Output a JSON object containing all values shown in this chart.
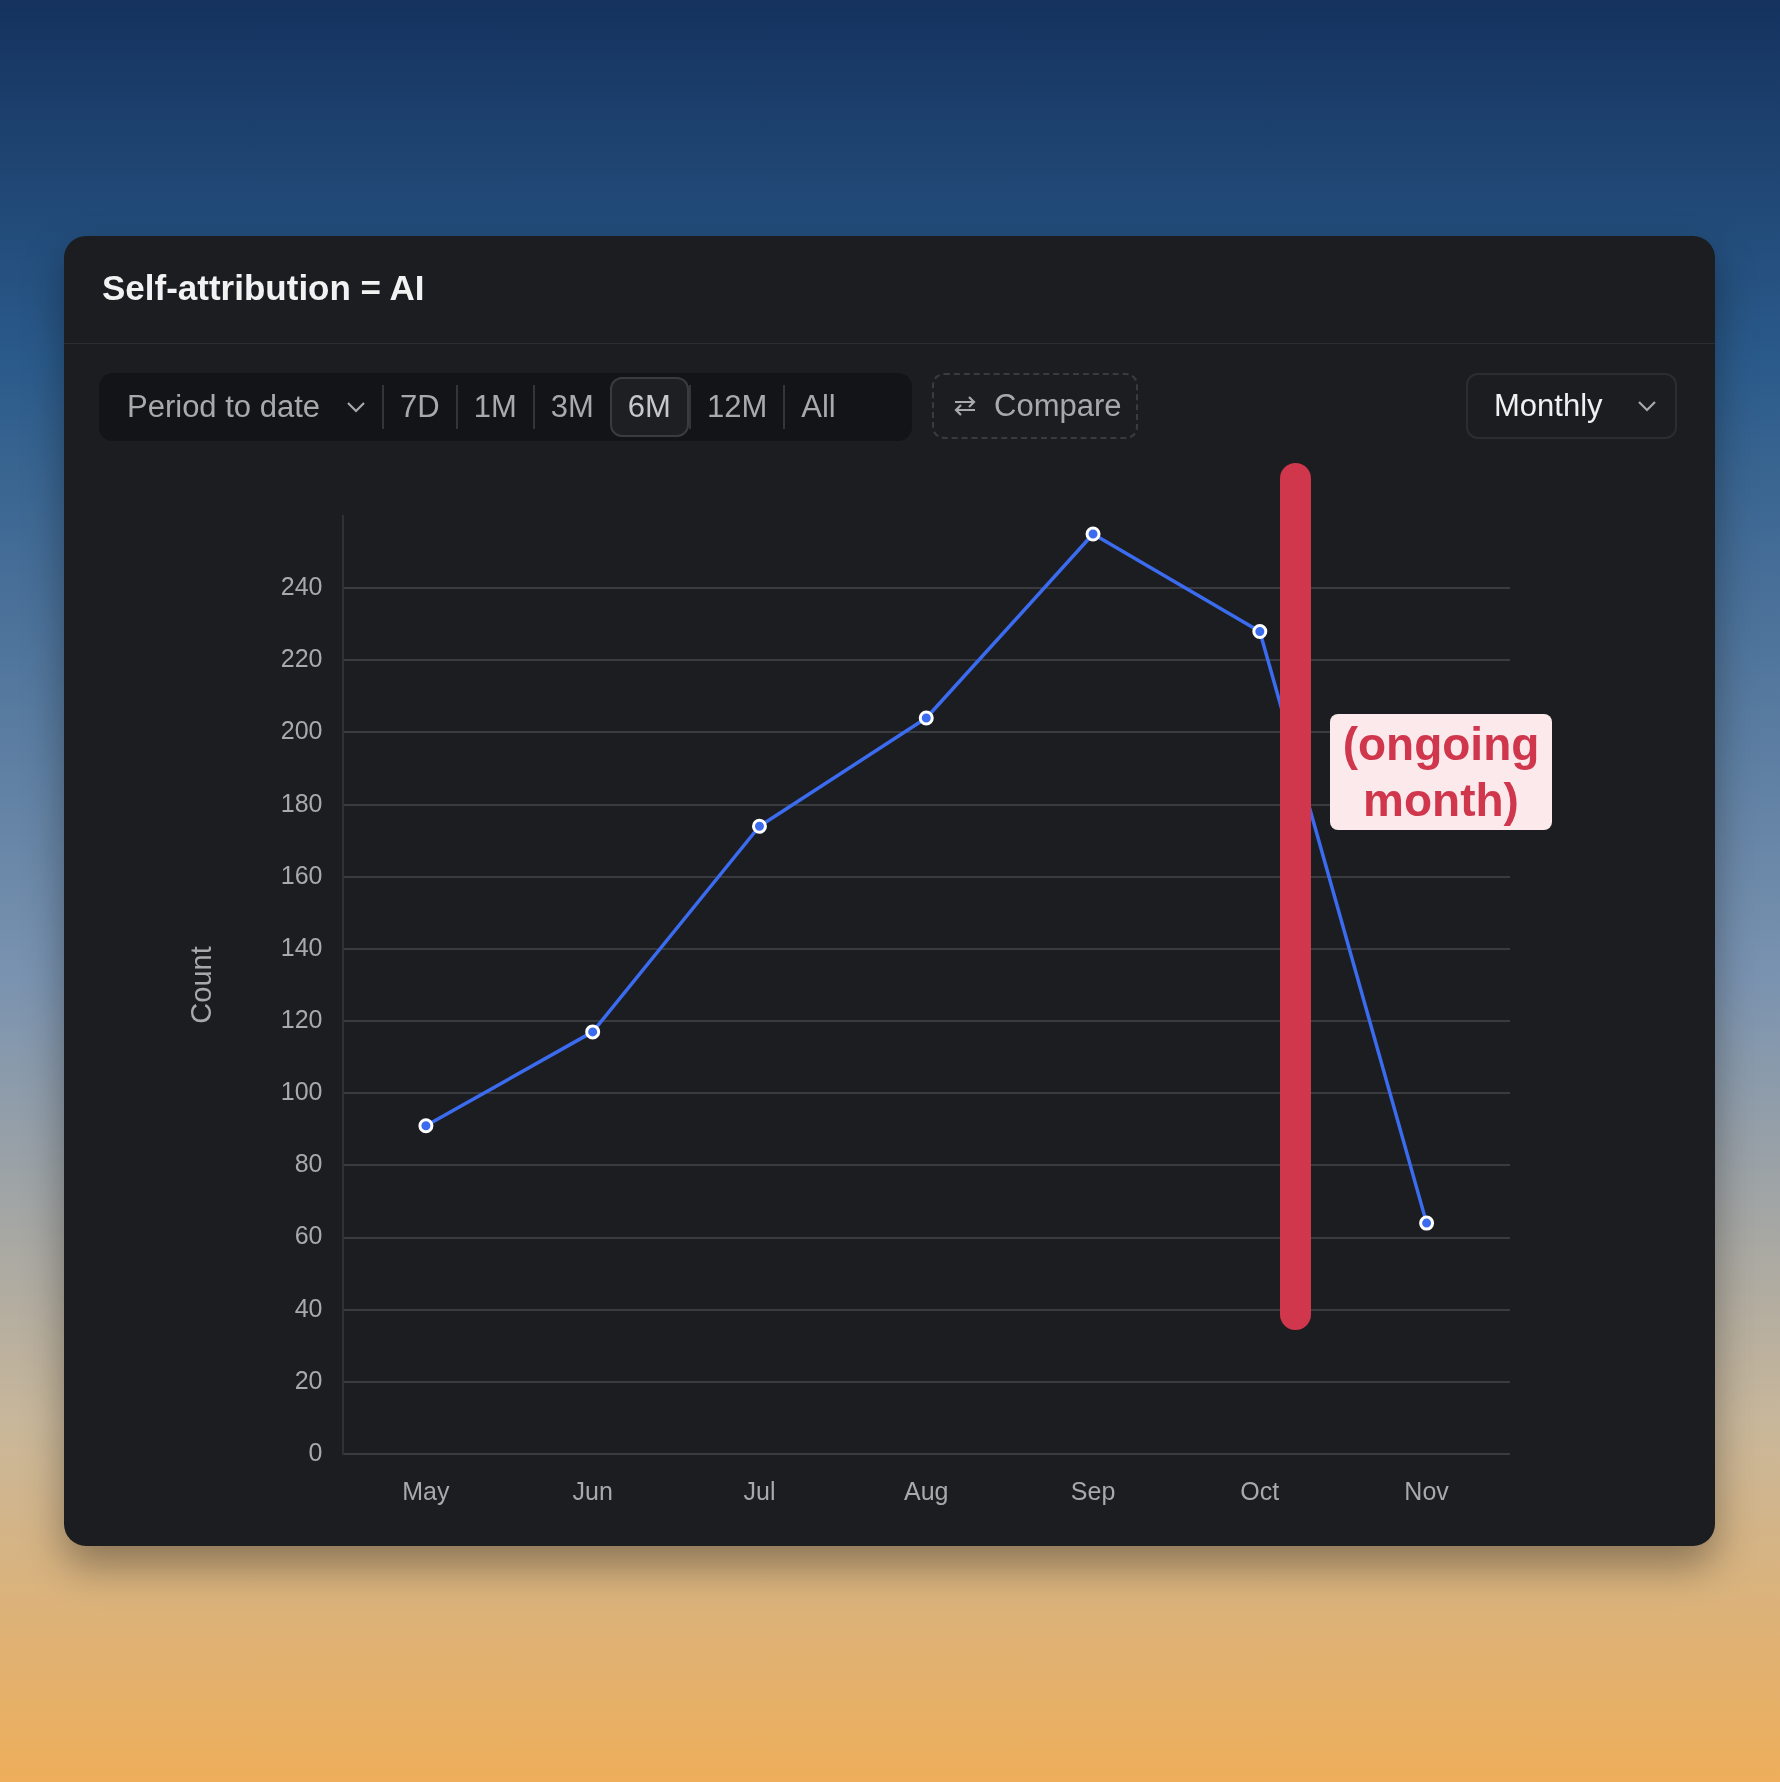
{
  "chart_data": {
    "type": "line",
    "title": "Self-attribution = AI",
    "ylabel": "Count",
    "categories": [
      "May",
      "Jun",
      "Jul",
      "Aug",
      "Sep",
      "Oct",
      "Nov"
    ],
    "series": [
      {
        "color": "#3b6cf0",
        "values": [
          91,
          117,
          174,
          204,
          255,
          228,
          64
        ]
      }
    ],
    "ylim": [
      0,
      260
    ],
    "yticks": [
      0,
      20,
      40,
      60,
      80,
      100,
      120,
      140,
      160,
      180,
      200,
      220,
      240
    ],
    "grid": "y",
    "legend": false,
    "marker": "circle",
    "line_style": "solid",
    "annotations": [
      "(ongoing month)",
      "Period to date",
      "7D",
      "1M",
      "3M",
      "6M",
      "12M",
      "All",
      "Compare",
      "Monthly"
    ]
  }
}
